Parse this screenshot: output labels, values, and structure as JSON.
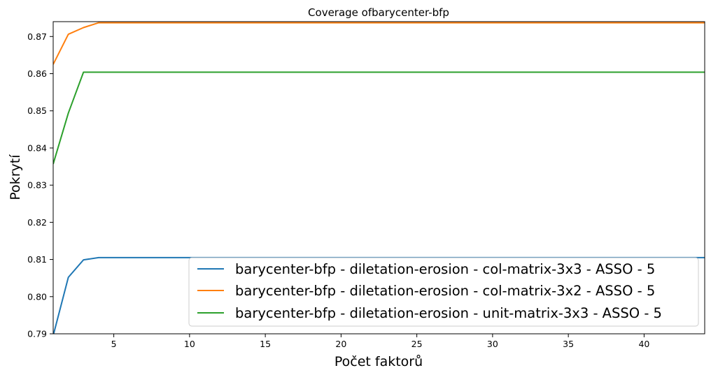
{
  "chart_data": {
    "type": "line",
    "title": "Coverage ofbarycenter-bfp",
    "xlabel": "Počet faktorů",
    "ylabel": "Pokrytí",
    "xlim": [
      1,
      44
    ],
    "ylim": [
      0.79,
      0.874
    ],
    "xticks": [
      5,
      10,
      15,
      20,
      25,
      30,
      35,
      40
    ],
    "yticks": [
      0.79,
      0.8,
      0.81,
      0.82,
      0.83,
      0.84,
      0.85,
      0.86,
      0.87
    ],
    "ytick_labels": [
      "0.79",
      "0.80",
      "0.81",
      "0.82",
      "0.83",
      "0.84",
      "0.85",
      "0.86",
      "0.87"
    ],
    "grid": false,
    "legend_position": "lower-right",
    "series": [
      {
        "name": "barycenter-bfp - diletation-erosion - col-matrix-3x3 - ASSO - 5",
        "color": "#1f77b4",
        "x": [
          1,
          2,
          3,
          4,
          44
        ],
        "y": [
          0.7895,
          0.8052,
          0.8099,
          0.8105,
          0.8105
        ]
      },
      {
        "name": "barycenter-bfp - diletation-erosion - col-matrix-3x2 - ASSO - 5",
        "color": "#ff7f0e",
        "x": [
          1,
          2,
          3,
          4,
          44
        ],
        "y": [
          0.8625,
          0.8706,
          0.8724,
          0.8737,
          0.8737
        ]
      },
      {
        "name": "barycenter-bfp - diletation-erosion - unit-matrix-3x3 - ASSO - 5",
        "color": "#2ca02c",
        "x": [
          1,
          2,
          3,
          4,
          44
        ],
        "y": [
          0.8357,
          0.8494,
          0.8604,
          0.8604,
          0.8604
        ]
      }
    ]
  }
}
